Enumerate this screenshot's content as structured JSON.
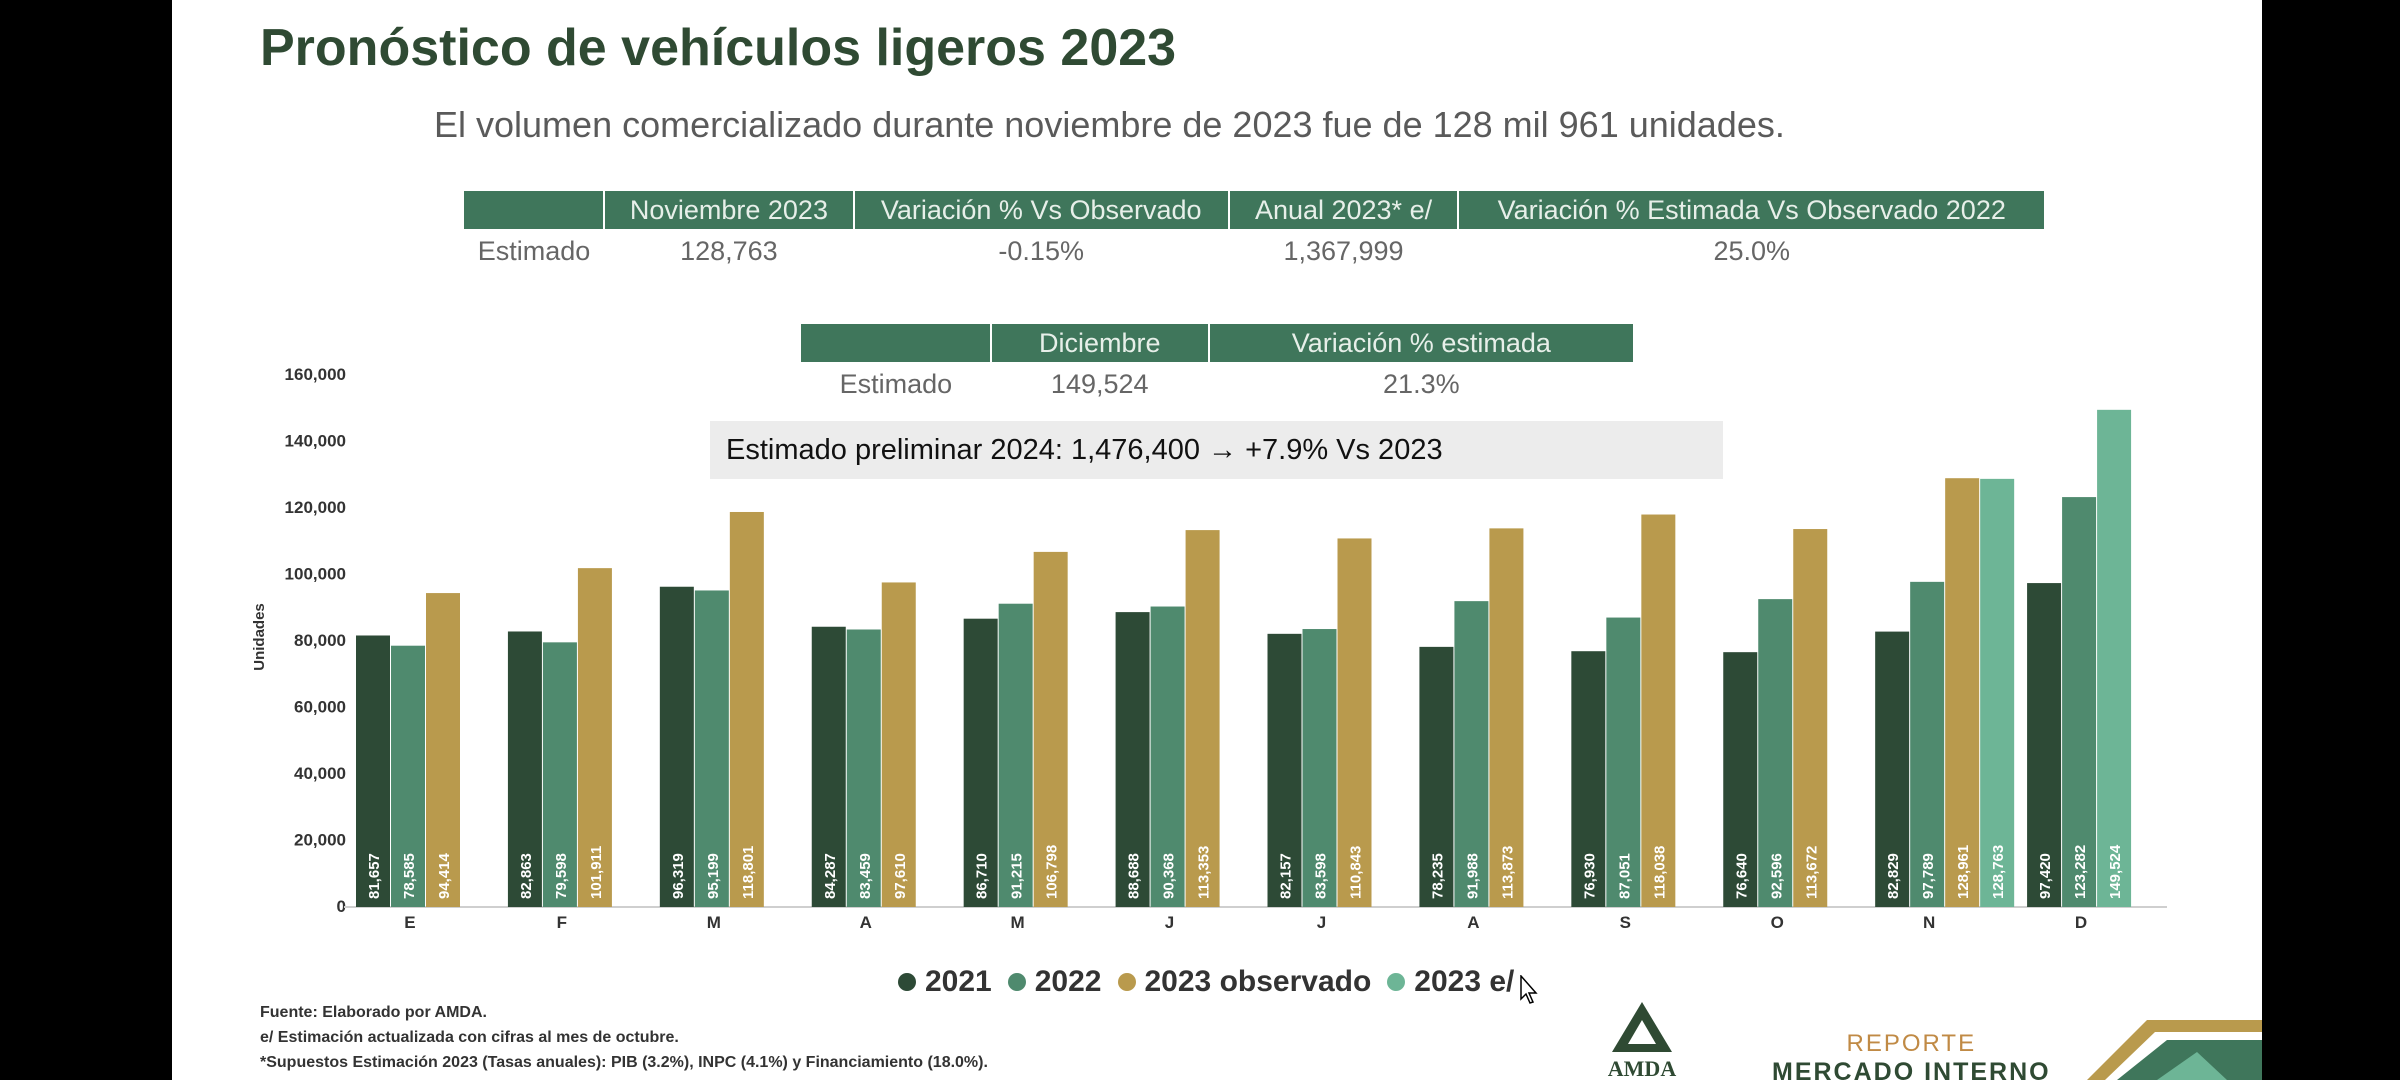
{
  "title": "Pronóstico de vehículos ligeros 2023",
  "subtitle": "El volumen comercializado durante noviembre de 2023 fue de 128 mil 961 unidades.",
  "table1": {
    "headers": [
      "",
      "Noviembre 2023",
      "Variación % Vs Observado",
      "Anual 2023* e/",
      "Variación % Estimada Vs Observado 2022"
    ],
    "row": [
      "Estimado",
      "128,763",
      "-0.15%",
      "1,367,999",
      "25.0%"
    ]
  },
  "table2": {
    "headers": [
      "",
      "Diciembre",
      "Variación % estimada"
    ],
    "row": [
      "Estimado",
      "149,524",
      "21.3%"
    ]
  },
  "banner": "Estimado preliminar 2024: 1,476,400 → +7.9% Vs 2023",
  "legend": [
    {
      "label": "2021",
      "color": "#2d4a36"
    },
    {
      "label": "2022",
      "color": "#4f8a6e"
    },
    {
      "label": "2023 observado",
      "color": "#b99a4d"
    },
    {
      "label": "2023 e/",
      "color": "#6db596"
    }
  ],
  "footnotes": [
    "Fuente: Elaborado por AMDA.",
    "e/ Estimación actualizada con cifras al mes de octubre.",
    "*Supuestos Estimación 2023 (Tasas anuales): PIB (3.2%), INPC (4.1%) y Financiamiento (18.0%)."
  ],
  "logo": {
    "text": "AMDA"
  },
  "report": {
    "top": "REPORTE",
    "bottom": "MERCADO INTERNO"
  },
  "chart_data": {
    "type": "bar",
    "ylabel": "Unidades",
    "ylim": [
      0,
      160000
    ],
    "yticks": [
      "0",
      "20,000",
      "40,000",
      "60,000",
      "80,000",
      "100,000",
      "120,000",
      "140,000",
      "160,000"
    ],
    "categories": [
      "E",
      "F",
      "M",
      "A",
      "M",
      "J",
      "J",
      "A",
      "S",
      "O",
      "N",
      "D"
    ],
    "series": [
      {
        "name": "2021",
        "color": "#2d4a36",
        "values": [
          81657,
          82863,
          96319,
          84287,
          86710,
          88688,
          82157,
          78235,
          76930,
          76640,
          82829,
          97420
        ],
        "labels": [
          "81,657",
          "82,863",
          "96,319",
          "84,287",
          "86,710",
          "88,688",
          "82,157",
          "78,235",
          "76,930",
          "76,640",
          "82,829",
          "97,420"
        ]
      },
      {
        "name": "2022",
        "color": "#4f8a6e",
        "values": [
          78585,
          79598,
          95199,
          83459,
          91215,
          90368,
          83598,
          91988,
          87051,
          92596,
          97789,
          123282
        ],
        "labels": [
          "78,585",
          "79,598",
          "95,199",
          "83,459",
          "91,215",
          "90,368",
          "83,598",
          "91,988",
          "87,051",
          "92,596",
          "97,789",
          "123,282"
        ]
      },
      {
        "name": "2023 observado",
        "color": "#b99a4d",
        "values": [
          94414,
          101911,
          118801,
          97610,
          106798,
          113353,
          110843,
          113873,
          118038,
          113672,
          128961,
          null
        ],
        "labels": [
          "94,414",
          "101,911",
          "118,801",
          "97,610",
          "106,798",
          "113,353",
          "110,843",
          "113,873",
          "118,038",
          "113,672",
          "128,961",
          ""
        ]
      },
      {
        "name": "2023 e/",
        "color": "#6db596",
        "values": [
          null,
          null,
          null,
          null,
          null,
          null,
          null,
          null,
          null,
          null,
          128763,
          149524
        ],
        "labels": [
          "",
          "",
          "",
          "",
          "",
          "",
          "",
          "",
          "",
          "",
          "128,763",
          "149,524"
        ]
      }
    ]
  }
}
